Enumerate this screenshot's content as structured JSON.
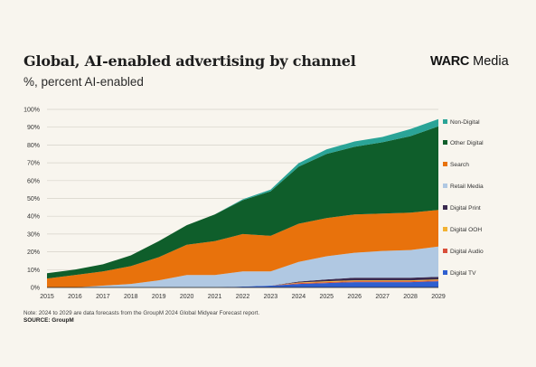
{
  "header": {
    "title": "Global, AI-enabled advertising by channel",
    "subtitle": "%, percent AI-enabled",
    "brand_bold": "WARC",
    "brand_rest": " Media"
  },
  "footer": {
    "note": "Note: 2024 to 2029 are data forecasts from the GroupM 2024 Global Midyear Forecast report.",
    "source": "SOURCE: GroupM"
  },
  "chart_data": {
    "type": "area",
    "stacked": true,
    "x": [
      "2015",
      "2016",
      "2017",
      "2018",
      "2019",
      "2020",
      "2021",
      "2022",
      "2023",
      "2024",
      "2025",
      "2026",
      "2027",
      "2028",
      "2029"
    ],
    "y_ticks": [
      "0%",
      "10%",
      "20%",
      "30%",
      "40%",
      "50%",
      "60%",
      "70%",
      "80%",
      "90%",
      "100%"
    ],
    "ylim": [
      0,
      100
    ],
    "grid": true,
    "legend": "right",
    "series": [
      {
        "name": "Digital TV",
        "color": "#2f5fd0",
        "values": [
          0,
          0,
          0,
          0,
          0,
          0,
          0,
          0.5,
          1,
          2,
          2.5,
          3,
          3,
          3,
          3.5
        ]
      },
      {
        "name": "Digital Audio",
        "color": "#d94f3a",
        "values": [
          0,
          0,
          0,
          0,
          0,
          0,
          0,
          0,
          0,
          0.5,
          0.5,
          0.5,
          0.5,
          0.5,
          0.5
        ]
      },
      {
        "name": "Digital OOH",
        "color": "#f2b233",
        "values": [
          0,
          0,
          0,
          0,
          0,
          0,
          0,
          0,
          0,
          0.3,
          0.5,
          0.5,
          0.5,
          0.5,
          0.5
        ]
      },
      {
        "name": "Digital Print",
        "color": "#3b2a4f",
        "values": [
          0,
          0,
          0,
          0,
          0,
          0,
          0,
          0,
          0,
          0.5,
          1,
          1.5,
          1.5,
          1.5,
          1.5
        ]
      },
      {
        "name": "Retail Media",
        "color": "#b0c8e2",
        "values": [
          0,
          0,
          1,
          2,
          4,
          7,
          7,
          8.5,
          8,
          11,
          13,
          14,
          15,
          15.5,
          17
        ]
      },
      {
        "name": "Search",
        "color": "#e8720c",
        "values": [
          5,
          7,
          8,
          10,
          13,
          17,
          19,
          21,
          20,
          21.5,
          21.5,
          21.5,
          21,
          21,
          20.5
        ]
      },
      {
        "name": "Other Digital",
        "color": "#0f5e2b",
        "values": [
          3,
          3,
          4,
          6,
          9,
          11,
          15,
          19,
          25,
          32,
          36,
          38,
          40,
          43,
          47
        ]
      },
      {
        "name": "Non-Digital",
        "color": "#2aa497",
        "values": [
          0,
          0,
          0,
          0,
          0,
          0,
          0,
          0.5,
          1,
          2,
          2.5,
          3,
          3,
          4,
          4
        ]
      }
    ]
  }
}
